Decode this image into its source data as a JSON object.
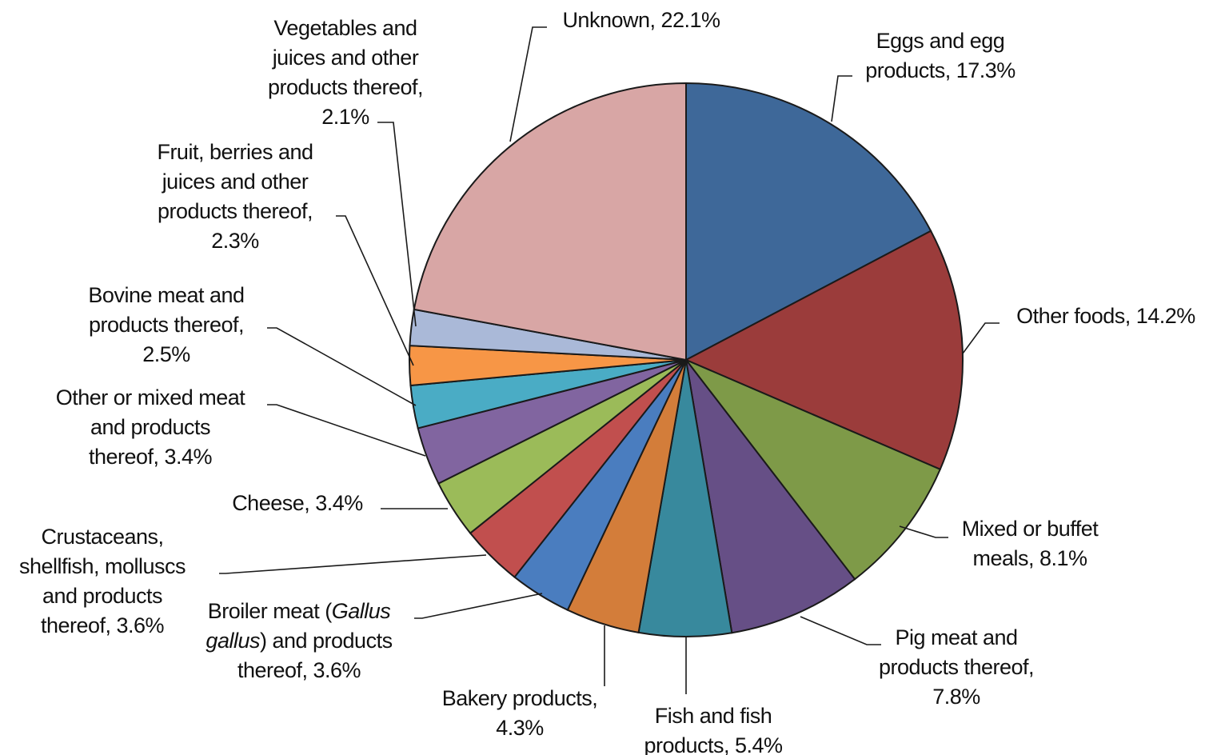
{
  "chart_data": {
    "type": "pie",
    "title": "",
    "unit": "%",
    "start": "12 o'clock, clockwise",
    "slices": [
      {
        "label": "Eggs and egg products",
        "value": 17.3,
        "color": "#3e6899",
        "text_lines": [
          [
            {
              "t": "Eggs and egg"
            }
          ],
          [
            {
              "t": "products, 17.3%"
            }
          ]
        ]
      },
      {
        "label": "Other foods",
        "value": 14.2,
        "color": "#9b3c3b",
        "text_lines": [
          [
            {
              "t": "Other foods, 14.2%"
            }
          ]
        ]
      },
      {
        "label": "Mixed or buffet meals",
        "value": 8.1,
        "color": "#7e9a48",
        "text_lines": [
          [
            {
              "t": "Mixed or buffet"
            }
          ],
          [
            {
              "t": "meals, 8.1%"
            }
          ]
        ]
      },
      {
        "label": "Pig meat and products thereof",
        "value": 7.8,
        "color": "#664f86",
        "text_lines": [
          [
            {
              "t": "Pig meat and"
            }
          ],
          [
            {
              "t": "products thereof,"
            }
          ],
          [
            {
              "t": "7.8%"
            }
          ]
        ]
      },
      {
        "label": "Fish and fish products",
        "value": 5.4,
        "color": "#38899d",
        "text_lines": [
          [
            {
              "t": "Fish and fish"
            }
          ],
          [
            {
              "t": "products, 5.4%"
            }
          ]
        ]
      },
      {
        "label": "Bakery products",
        "value": 4.3,
        "color": "#d37d3a",
        "text_lines": [
          [
            {
              "t": "Bakery products,"
            }
          ],
          [
            {
              "t": "4.3%"
            }
          ]
        ]
      },
      {
        "label": "Broiler meat (Gallus gallus) and products thereof",
        "value": 3.6,
        "color": "#4a7dbf",
        "text_lines": [
          [
            {
              "t": "Broiler meat ("
            },
            {
              "t": "Gallus",
              "i": true
            }
          ],
          [
            {
              "t": "gallus",
              "i": true
            },
            {
              "t": ") and products"
            }
          ],
          [
            {
              "t": "thereof, 3.6%"
            }
          ]
        ]
      },
      {
        "label": "Crustaceans, shellfish, molluscs and products thereof",
        "value": 3.6,
        "color": "#c14f4e",
        "text_lines": [
          [
            {
              "t": "Crustaceans,"
            }
          ],
          [
            {
              "t": "shellfish, molluscs"
            }
          ],
          [
            {
              "t": "and products"
            }
          ],
          [
            {
              "t": "thereof, 3.6%"
            }
          ]
        ]
      },
      {
        "label": "Cheese",
        "value": 3.4,
        "color": "#9bbb59",
        "text_lines": [
          [
            {
              "t": "Cheese, 3.4%"
            }
          ]
        ]
      },
      {
        "label": "Other or mixed meat and products thereof",
        "value": 3.4,
        "color": "#8165a0",
        "text_lines": [
          [
            {
              "t": "Other or mixed meat"
            }
          ],
          [
            {
              "t": "and products"
            }
          ],
          [
            {
              "t": "thereof, 3.4%"
            }
          ]
        ]
      },
      {
        "label": "Bovine meat and products thereof",
        "value": 2.5,
        "color": "#4aacc5",
        "text_lines": [
          [
            {
              "t": "Bovine meat and"
            }
          ],
          [
            {
              "t": "products thereof,"
            }
          ],
          [
            {
              "t": "2.5%"
            }
          ]
        ]
      },
      {
        "label": "Fruit, berries and juices and other products thereof",
        "value": 2.3,
        "color": "#f79646",
        "text_lines": [
          [
            {
              "t": "Fruit, berries and"
            }
          ],
          [
            {
              "t": "juices and other"
            }
          ],
          [
            {
              "t": "products thereof,"
            }
          ],
          [
            {
              "t": "2.3%"
            }
          ]
        ]
      },
      {
        "label": "Vegetables and juices and other products thereof",
        "value": 2.1,
        "color": "#aab9d8",
        "text_lines": [
          [
            {
              "t": "Vegetables and"
            }
          ],
          [
            {
              "t": "juices and other"
            }
          ],
          [
            {
              "t": "products thereof,"
            }
          ],
          [
            {
              "t": "2.1%"
            }
          ]
        ]
      },
      {
        "label": "Unknown",
        "value": 22.1,
        "color": "#d8a6a5",
        "text_lines": [
          [
            {
              "t": "Unknown, 22.1%"
            }
          ]
        ]
      }
    ]
  }
}
